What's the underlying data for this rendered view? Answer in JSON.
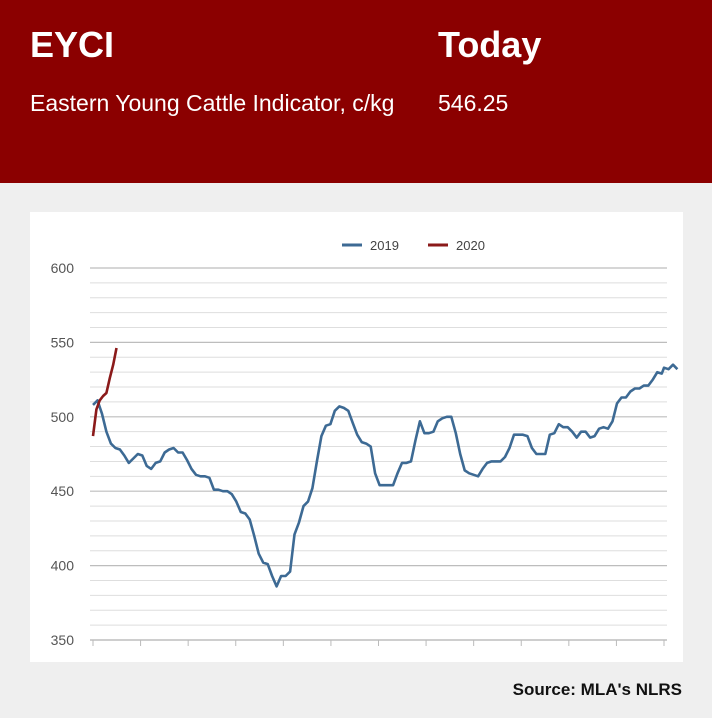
{
  "header": {
    "code": "EYCI",
    "name": "Eastern Young Cattle Indicator, c/kg",
    "today_label": "Today",
    "today_value": "546.25"
  },
  "source": "Source: MLA's NLRS",
  "colors": {
    "header_bg": "#8b0000",
    "series_2019": "#3d6a94",
    "series_2020": "#8b1a1a",
    "grid": "#d4d4d4"
  },
  "chart_data": {
    "type": "line",
    "title": "",
    "xlabel": "",
    "ylabel": "",
    "ylim": [
      350,
      600
    ],
    "yticks": [
      350,
      400,
      450,
      500,
      550,
      600
    ],
    "grid": true,
    "legend_position": "top-center",
    "x_domain": [
      1,
      52
    ],
    "series": [
      {
        "name": "2019",
        "color": "#3d6a94",
        "points": [
          [
            1,
            508
          ],
          [
            1.4,
            511
          ],
          [
            1.8,
            502
          ],
          [
            2.2,
            490
          ],
          [
            2.6,
            482
          ],
          [
            3,
            479
          ],
          [
            3.4,
            478
          ],
          [
            3.8,
            474
          ],
          [
            4.2,
            469
          ],
          [
            4.6,
            472
          ],
          [
            5,
            475
          ],
          [
            5.4,
            474
          ],
          [
            5.8,
            467
          ],
          [
            6.2,
            465
          ],
          [
            6.6,
            469
          ],
          [
            7,
            470
          ],
          [
            7.4,
            476
          ],
          [
            7.8,
            478
          ],
          [
            8.2,
            479
          ],
          [
            8.6,
            476
          ],
          [
            9,
            476
          ],
          [
            9.4,
            471
          ],
          [
            9.8,
            465
          ],
          [
            10.2,
            461
          ],
          [
            10.6,
            460
          ],
          [
            11,
            460
          ],
          [
            11.4,
            459
          ],
          [
            11.8,
            451
          ],
          [
            12.2,
            451
          ],
          [
            12.6,
            450
          ],
          [
            13,
            450
          ],
          [
            13.4,
            448
          ],
          [
            13.8,
            443
          ],
          [
            14.2,
            436
          ],
          [
            14.6,
            435
          ],
          [
            15,
            431
          ],
          [
            15.4,
            420
          ],
          [
            15.8,
            408
          ],
          [
            16.2,
            402
          ],
          [
            16.6,
            401
          ],
          [
            17,
            393
          ],
          [
            17.4,
            386
          ],
          [
            17.8,
            393
          ],
          [
            18.2,
            393
          ],
          [
            18.6,
            396
          ],
          [
            19,
            421
          ],
          [
            19.4,
            429
          ],
          [
            19.8,
            440
          ],
          [
            20.2,
            443
          ],
          [
            20.6,
            452
          ],
          [
            21,
            470
          ],
          [
            21.4,
            487
          ],
          [
            21.8,
            494
          ],
          [
            22.2,
            495
          ],
          [
            22.6,
            504
          ],
          [
            23,
            507
          ],
          [
            23.4,
            506
          ],
          [
            23.8,
            504
          ],
          [
            24.2,
            496
          ],
          [
            24.6,
            488
          ],
          [
            25,
            483
          ],
          [
            25.4,
            482
          ],
          [
            25.8,
            480
          ],
          [
            26.2,
            462
          ],
          [
            26.6,
            454
          ],
          [
            27,
            454
          ],
          [
            27.4,
            454
          ],
          [
            27.8,
            454
          ],
          [
            28.2,
            462
          ],
          [
            28.6,
            469
          ],
          [
            29,
            469
          ],
          [
            29.4,
            470
          ],
          [
            29.8,
            484
          ],
          [
            30.2,
            497
          ],
          [
            30.6,
            489
          ],
          [
            31,
            489
          ],
          [
            31.4,
            490
          ],
          [
            31.8,
            497
          ],
          [
            32.2,
            499
          ],
          [
            32.6,
            500
          ],
          [
            33,
            500
          ],
          [
            33.4,
            489
          ],
          [
            33.8,
            475
          ],
          [
            34.2,
            464
          ],
          [
            34.6,
            462
          ],
          [
            35,
            461
          ],
          [
            35.4,
            460
          ],
          [
            35.8,
            465
          ],
          [
            36.2,
            469
          ],
          [
            36.6,
            470
          ],
          [
            37,
            470
          ],
          [
            37.4,
            470
          ],
          [
            37.8,
            473
          ],
          [
            38.2,
            479
          ],
          [
            38.6,
            488
          ],
          [
            39,
            488
          ],
          [
            39.4,
            488
          ],
          [
            39.8,
            487
          ],
          [
            40.2,
            479
          ],
          [
            40.6,
            475
          ],
          [
            41,
            475
          ],
          [
            41.4,
            475
          ],
          [
            41.8,
            488
          ],
          [
            42.2,
            489
          ],
          [
            42.6,
            495
          ],
          [
            43,
            493
          ],
          [
            43.4,
            493
          ],
          [
            43.8,
            490
          ],
          [
            44.2,
            486
          ],
          [
            44.6,
            490
          ],
          [
            45,
            490
          ],
          [
            45.4,
            486
          ],
          [
            45.8,
            487
          ],
          [
            46.2,
            492
          ],
          [
            46.6,
            493
          ],
          [
            47,
            492
          ],
          [
            47.4,
            497
          ],
          [
            47.8,
            509
          ],
          [
            48.2,
            513
          ],
          [
            48.6,
            513
          ],
          [
            49,
            517
          ],
          [
            49.4,
            519
          ],
          [
            49.8,
            519
          ],
          [
            50.2,
            521
          ],
          [
            50.6,
            521
          ],
          [
            51,
            525
          ],
          [
            51.4,
            530
          ],
          [
            51.8,
            529
          ]
        ]
      },
      {
        "name": "2020",
        "color": "#8b1a1a",
        "points": [
          [
            1,
            487
          ],
          [
            1.3,
            505
          ],
          [
            1.6,
            511
          ],
          [
            1.9,
            514
          ],
          [
            2.2,
            516
          ],
          [
            2.5,
            526
          ],
          [
            2.8,
            535
          ],
          [
            3.1,
            546.25
          ]
        ]
      }
    ],
    "series_2019_tail": [
      [
        52,
        533
      ],
      [
        52.4,
        532
      ],
      [
        52.8,
        535
      ],
      [
        53.2,
        532
      ]
    ]
  }
}
